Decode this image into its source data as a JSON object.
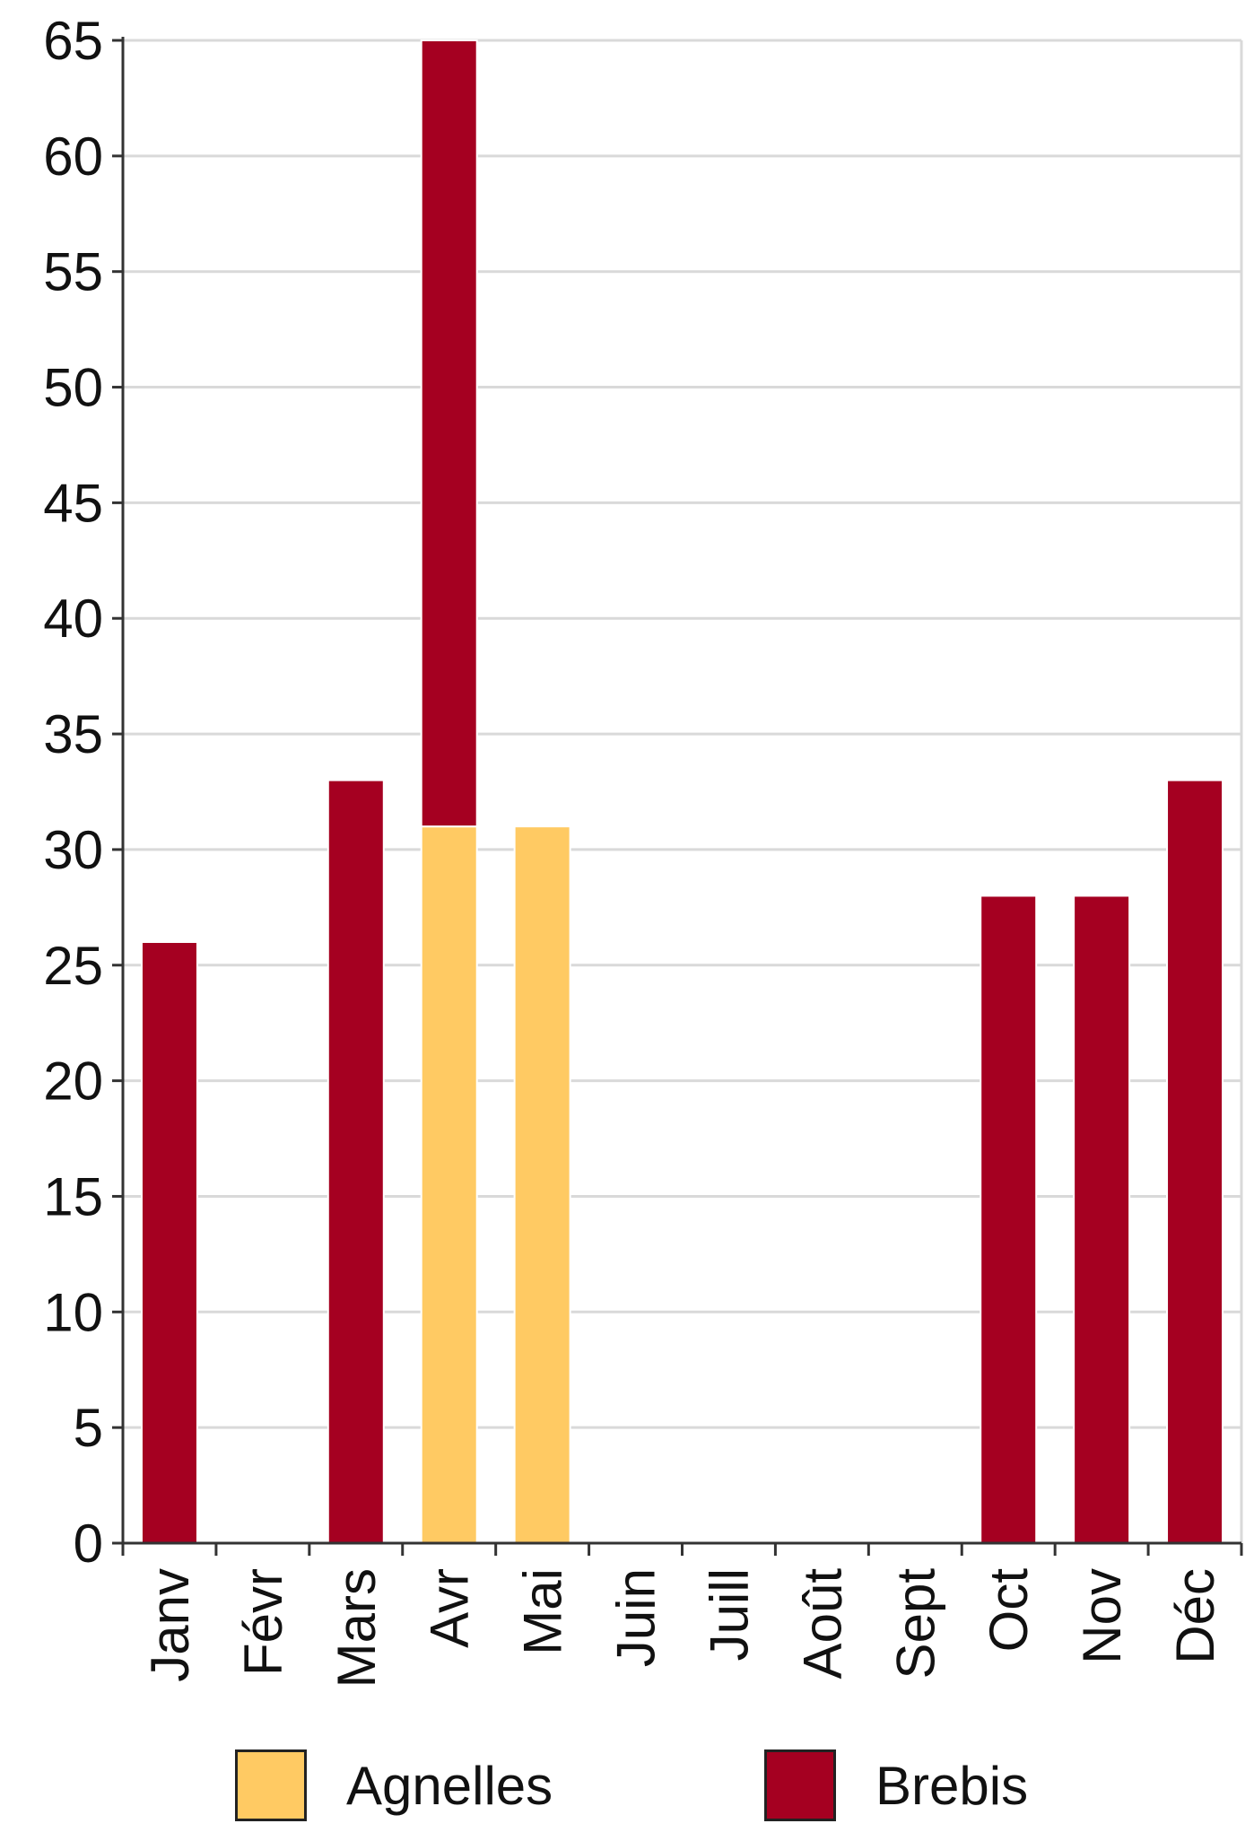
{
  "chart_data": {
    "type": "bar",
    "stacked": true,
    "categories": [
      "Janv",
      "Févr",
      "Mars",
      "Avr",
      "Mai",
      "Juin",
      "Juill",
      "Août",
      "Sept",
      "Oct",
      "Nov",
      "Déc"
    ],
    "series": [
      {
        "name": "Agnelles",
        "color": "#FFCA63",
        "values": [
          0,
          0,
          0,
          31,
          31,
          0,
          0,
          0,
          0,
          0,
          0,
          0
        ]
      },
      {
        "name": "Brebis",
        "color": "#A50021",
        "values": [
          26,
          0,
          33,
          34,
          0,
          0,
          0,
          0,
          0,
          28,
          28,
          33
        ]
      }
    ],
    "ylim": [
      0,
      65
    ],
    "yticks": [
      0,
      5,
      10,
      15,
      20,
      25,
      30,
      35,
      40,
      45,
      50,
      55,
      60,
      65
    ],
    "grid": true,
    "legend_position": "bottom",
    "title": "",
    "xlabel": "",
    "ylabel": ""
  }
}
